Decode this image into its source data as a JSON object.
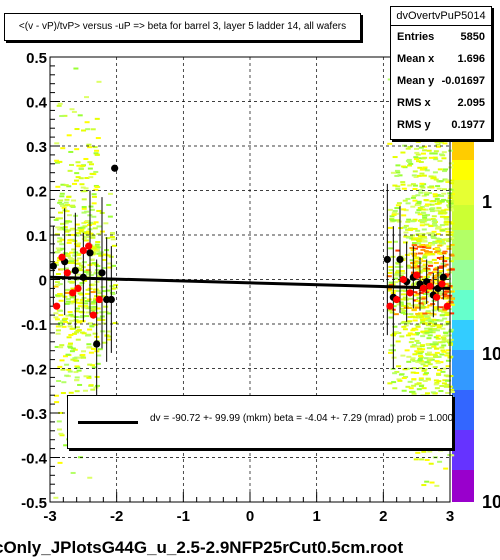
{
  "chart_data": {
    "type": "scatter",
    "title": "<(v - vP)/tvP> versus  -uP => beta for barrel 3, layer 5 ladder 14, all wafers",
    "xlabel": "",
    "ylabel": "",
    "xlim": [
      -3,
      3
    ],
    "ylim": [
      -0.5,
      0.5
    ],
    "x_ticks": [
      "-3",
      "-2",
      "-1",
      "0",
      "1",
      "2",
      "3"
    ],
    "y_ticks": [
      "-0.5",
      "-0.4",
      "-0.3",
      "-0.2",
      "-0.1",
      "0",
      "0.1",
      "0.2",
      "0.3",
      "0.4",
      "0.5"
    ],
    "grid": true,
    "colorbar_labels": [
      "1",
      "10",
      "10"
    ],
    "colors": {
      "black_points": "#000000",
      "red_points": "#ff0000",
      "fit_line": "#000000"
    },
    "fit_line": {
      "x": [
        -3,
        3
      ],
      "y": [
        0.005,
        -0.02
      ]
    },
    "series": [
      {
        "color": "#000000",
        "points": [
          {
            "x": -2.95,
            "y": 0.03,
            "err": 0.09
          },
          {
            "x": -2.78,
            "y": 0.04,
            "err": 0.12
          },
          {
            "x": -2.62,
            "y": 0.02,
            "err": 0.13
          },
          {
            "x": -2.5,
            "y": 0.005,
            "err": 0.1
          },
          {
            "x": -2.4,
            "y": 0.06,
            "err": 0.14
          },
          {
            "x": -2.3,
            "y": -0.145,
            "err": 0.19
          },
          {
            "x": -2.22,
            "y": 0.015,
            "err": 0.17
          },
          {
            "x": -2.15,
            "y": -0.045,
            "err": 0.14
          },
          {
            "x": -2.08,
            "y": -0.045,
            "err": 0.12
          },
          {
            "x": -2.03,
            "y": 0.25,
            "err": 0.0
          },
          {
            "x": 2.06,
            "y": 0.045,
            "err": 0.17
          },
          {
            "x": 2.15,
            "y": -0.04,
            "err": 0.16
          },
          {
            "x": 2.25,
            "y": 0.045,
            "err": 0.12
          },
          {
            "x": 2.35,
            "y": -0.005,
            "err": 0.09
          },
          {
            "x": 2.45,
            "y": 0.005,
            "err": 0.07
          },
          {
            "x": 2.55,
            "y": -0.01,
            "err": 0.06
          },
          {
            "x": 2.65,
            "y": -0.005,
            "err": 0.05
          },
          {
            "x": 2.75,
            "y": -0.035,
            "err": 0.05
          },
          {
            "x": 2.82,
            "y": -0.02,
            "err": 0.05
          },
          {
            "x": 2.9,
            "y": 0.005,
            "err": 0.05
          }
        ]
      },
      {
        "color": "#ff0000",
        "points": [
          {
            "x": -2.9,
            "y": -0.06
          },
          {
            "x": -2.82,
            "y": 0.05
          },
          {
            "x": -2.74,
            "y": 0.015
          },
          {
            "x": -2.66,
            "y": -0.03
          },
          {
            "x": -2.58,
            "y": -0.02
          },
          {
            "x": -2.5,
            "y": 0.065
          },
          {
            "x": -2.42,
            "y": 0.075
          },
          {
            "x": -2.35,
            "y": -0.08
          },
          {
            "x": -2.26,
            "y": -0.045
          },
          {
            "x": 2.1,
            "y": -0.06
          },
          {
            "x": 2.2,
            "y": -0.045
          },
          {
            "x": 2.3,
            "y": 0.0
          },
          {
            "x": 2.4,
            "y": -0.03
          },
          {
            "x": 2.5,
            "y": 0.01
          },
          {
            "x": 2.6,
            "y": -0.02
          },
          {
            "x": 2.7,
            "y": -0.015
          },
          {
            "x": 2.8,
            "y": -0.04
          },
          {
            "x": 2.88,
            "y": -0.01
          },
          {
            "x": 2.96,
            "y": -0.06
          }
        ]
      }
    ]
  },
  "stats": {
    "title": "dvOvertvPuP5014",
    "rows": [
      {
        "label": "Entries",
        "value": "5850"
      },
      {
        "label": "Mean x",
        "value": "1.696"
      },
      {
        "label": "Mean y",
        "value": "-0.01697"
      },
      {
        "label": "RMS x",
        "value": "2.095"
      },
      {
        "label": "RMS y",
        "value": "0.1977"
      }
    ]
  },
  "legend": {
    "text": "dv =  -90.72 +-  99.99 (mkm) beta =   -4.04 +-  7.29 (mrad) prob = 1.000"
  },
  "footer": "cOnly_JPlotsG44G_u_2.5-2.9NFP25rCut0.5cm.root"
}
